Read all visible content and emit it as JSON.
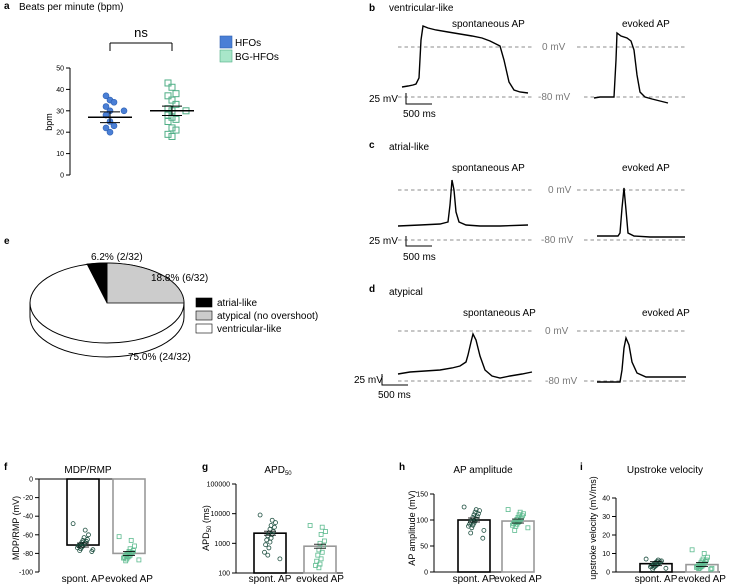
{
  "colors": {
    "hfo": "#4a7fd6",
    "bg_hfo": "#a8e6c9",
    "bg_hfo_stroke": "#4fae86",
    "dot_dark": "#1b4d3e",
    "dot_green": "#5dbb8f",
    "dash": "#8c8c8c"
  },
  "panel_a": {
    "label": "a",
    "title": "Beats per minute (bpm)",
    "ylabel": "bpm",
    "ns": "ns",
    "legend": [
      "HFOs",
      "BG-HFOs"
    ]
  },
  "panel_bcd": {
    "b": {
      "label": "b",
      "title": "ventricular-like"
    },
    "c": {
      "label": "c",
      "title": "atrial-like"
    },
    "d": {
      "label": "d",
      "title": "atypical"
    },
    "spontaneous": "spontaneous AP",
    "evoked": "evoked AP",
    "zero": "0 mV",
    "minus80": "-80 mV",
    "scale_v": "25 mV",
    "scale_t": "500 ms"
  },
  "panel_e": {
    "label": "e"
  },
  "panel_f": {
    "label": "f",
    "title": "MDP/RMP",
    "ylabel": "MDP/RMP (mV)"
  },
  "panel_g": {
    "label": "g",
    "title": "APD",
    "title_sub": "50",
    "ylabel_pre": "APD",
    "ylabel_sub": "50",
    "ylabel_post": " (ms)"
  },
  "panel_h": {
    "label": "h",
    "title": "AP amplitude",
    "ylabel": "AP amplitude (mV)"
  },
  "panel_i": {
    "label": "i",
    "title": "Upstroke velocity",
    "ylabel": "upstroke velocity (mV/ms)"
  },
  "chart_data": [
    {
      "id": "a",
      "type": "scatter",
      "categories": [
        "HFOs",
        "BG-HFOs"
      ],
      "ylim": [
        0,
        50
      ],
      "yticks": [
        0,
        10,
        20,
        30,
        40,
        50
      ],
      "series": [
        {
          "name": "HFOs",
          "mean": 27,
          "sem": 2.5,
          "values": [
            37,
            35,
            34,
            32,
            30,
            30,
            28,
            25,
            23,
            22,
            20
          ]
        },
        {
          "name": "BG-HFOs",
          "mean": 30,
          "sem": 2.2,
          "values": [
            43,
            41,
            38,
            37,
            35,
            33,
            31,
            30,
            30,
            28,
            27,
            26,
            25,
            22,
            21,
            19,
            18
          ]
        }
      ],
      "annotation": "ns"
    },
    {
      "id": "e",
      "type": "pie",
      "slices": [
        {
          "label": "atrial-like",
          "value": 2,
          "text": "6.2% (2/32)",
          "color": "#000000"
        },
        {
          "label": "atypical (no overshoot)",
          "value": 6,
          "text": "18.8% (6/32)",
          "color": "#cccccc"
        },
        {
          "label": "ventricular-like",
          "value": 24,
          "text": "75.0% (24/32)",
          "color": "#ffffff"
        }
      ]
    },
    {
      "id": "f",
      "type": "bar",
      "categories": [
        "spont. AP",
        "evoked AP"
      ],
      "ylim": [
        -100,
        0
      ],
      "yticks": [
        0,
        -20,
        -40,
        -60,
        -80,
        -100
      ],
      "values": [
        -71,
        -80
      ],
      "points": [
        [
          -48,
          -55,
          -60,
          -63,
          -65,
          -66,
          -67,
          -68,
          -69,
          -70,
          -70,
          -71,
          -72,
          -72,
          -73,
          -74,
          -75,
          -76,
          -77,
          -78
        ],
        [
          -62,
          -66,
          -72,
          -75,
          -77,
          -78,
          -79,
          -80,
          -80,
          -81,
          -82,
          -82,
          -83,
          -84,
          -84,
          -85,
          -86,
          -87,
          -88
        ]
      ]
    },
    {
      "id": "g",
      "type": "bar",
      "scale": "log",
      "categories": [
        "spont. AP",
        "evoked AP"
      ],
      "ylim": [
        100,
        100000
      ],
      "yticks": [
        100,
        1000,
        10000,
        100000
      ],
      "values": [
        2200,
        800
      ],
      "points": [
        [
          9000,
          6000,
          5000,
          4000,
          3500,
          3000,
          2500,
          2200,
          2000,
          1800,
          1500,
          1300,
          1100,
          900,
          700,
          500,
          400,
          300
        ],
        [
          4000,
          3500,
          2500,
          2000,
          1200,
          1000,
          800,
          600,
          500,
          400,
          300,
          250,
          200,
          180,
          150
        ]
      ]
    },
    {
      "id": "h",
      "type": "bar",
      "categories": [
        "spont. AP",
        "evoked AP"
      ],
      "ylim": [
        0,
        150
      ],
      "yticks": [
        0,
        50,
        100,
        150
      ],
      "values": [
        100,
        98
      ],
      "points": [
        [
          125,
          120,
          118,
          115,
          112,
          110,
          108,
          105,
          102,
          100,
          98,
          96,
          94,
          92,
          90,
          88,
          85,
          80,
          75,
          65
        ],
        [
          120,
          115,
          112,
          110,
          108,
          105,
          103,
          101,
          100,
          98,
          97,
          96,
          95,
          93,
          92,
          90,
          88,
          85,
          80
        ]
      ]
    },
    {
      "id": "i",
      "type": "bar",
      "categories": [
        "spont. AP",
        "evoked AP"
      ],
      "ylim": [
        0,
        40
      ],
      "yticks": [
        0,
        10,
        20,
        30,
        40
      ],
      "values": [
        4.5,
        4
      ],
      "points": [
        [
          7,
          6.5,
          6,
          5.8,
          5.5,
          5.2,
          5,
          4.8,
          4.5,
          4.3,
          4,
          3.8,
          3.5,
          3.2,
          3,
          2.8,
          2.5,
          2,
          1.5
        ],
        [
          12,
          10,
          8,
          7,
          6.5,
          6,
          5.5,
          5,
          4.5,
          4,
          3.8,
          3.5,
          3.2,
          3,
          2.8,
          2.5,
          2.2,
          2,
          1.8,
          1.5
        ]
      ]
    }
  ]
}
